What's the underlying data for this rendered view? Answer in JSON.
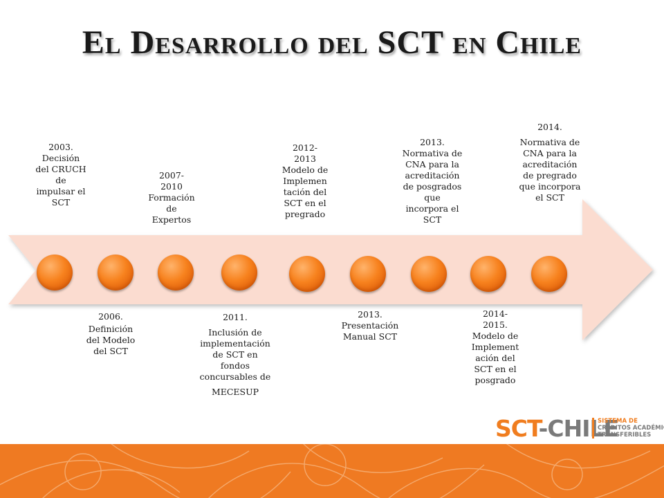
{
  "title": "El Desarrollo del SCT en Chile",
  "timeline": {
    "above": [
      [
        "2003.",
        "Decisión",
        "del CRUCH",
        "de",
        "impulsar el",
        "SCT"
      ],
      [
        "2007-",
        "2010",
        "Formación",
        "de",
        "Expertos"
      ],
      [
        "2012-",
        "2013",
        "Modelo de",
        "Implemen",
        "tación del",
        "SCT en el",
        "pregrado"
      ],
      [
        "2013.",
        "Normativa de",
        "CNA para la",
        "acreditación",
        "de posgrados",
        "que",
        "incorpora el",
        "SCT"
      ],
      [
        "2014.",
        "Normativa de",
        "CNA para la",
        "acreditación",
        "de pregrado",
        "que incorpora",
        "el SCT"
      ]
    ],
    "below": [
      [
        "2006.",
        "Definición",
        "del Modelo",
        "del SCT"
      ],
      [
        "2011.",
        "Inclusión de",
        "implementación",
        "de SCT en",
        "fondos",
        "concursables de",
        "MECESUP"
      ],
      [
        "2013.",
        "Presentación",
        "Manual SCT"
      ],
      [
        "2014-",
        "2015.",
        "Modelo de",
        "Implement",
        "ación del",
        "SCT en el",
        "posgrado"
      ]
    ]
  },
  "logo": {
    "sct": "SCT",
    "chile": "-CHILE",
    "lines": [
      "SISTEMA DE",
      "CRÉDITOS ACADÉMICOS",
      "TRANSFERIBLES"
    ]
  },
  "colors": {
    "accent": "#f07d1f",
    "arrow": "#fbdcd0",
    "node": "#f7821e",
    "band": "#ef7a22"
  }
}
